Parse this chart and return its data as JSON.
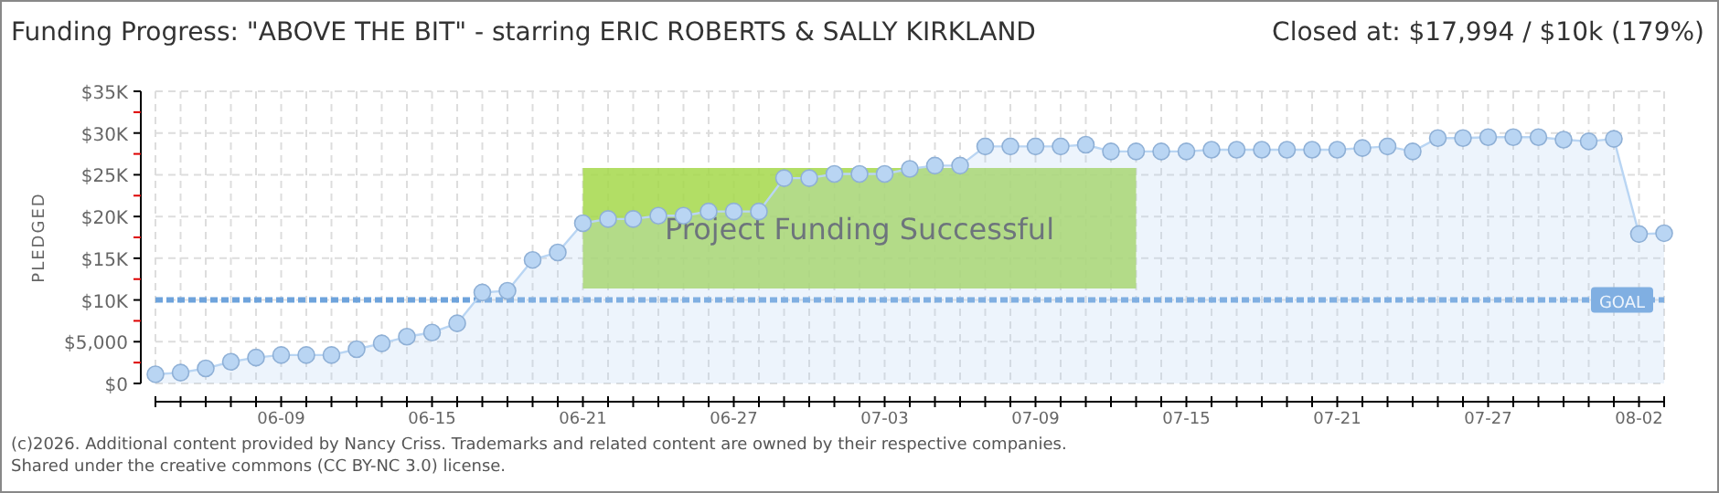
{
  "chart_data": {
    "type": "area",
    "title": "Funding Progress: \"ABOVE THE BIT\" - starring ERIC ROBERTS & SALLY KIRKLAND",
    "subtitle": "Closed at: $17,994 / $10k (179%)",
    "ylabel": "PLEDGED",
    "annotations": [
      "Project Funding Successful",
      "(c)2026. Additional content provided by Nancy Criss. Trademarks and related content are owned by their respective companies.",
      "Shared under the creative commons (CC BY-NC 3.0) license."
    ],
    "x": [
      "--06-04",
      "--06-05",
      "--06-06",
      "--06-07",
      "--06-08",
      "--06-09",
      "--06-10",
      "--06-11",
      "--06-12",
      "--06-13",
      "--06-14",
      "--06-15",
      "--06-16",
      "--06-17",
      "--06-18",
      "--06-19",
      "--06-20",
      "--06-21",
      "--06-22",
      "--06-23",
      "--06-24",
      "--06-25",
      "--06-26",
      "--06-27",
      "--06-28",
      "--06-29",
      "--06-30",
      "--07-01",
      "--07-02",
      "--07-03",
      "--07-04",
      "--07-05",
      "--07-06",
      "--07-07",
      "--07-08",
      "--07-09",
      "--07-10",
      "--07-11",
      "--07-12",
      "--07-13",
      "--07-14",
      "--07-15",
      "--07-16",
      "--07-17",
      "--07-18",
      "--07-19",
      "--07-20",
      "--07-21",
      "--07-22",
      "--07-23",
      "--07-24",
      "--07-25",
      "--07-26",
      "--07-27",
      "--07-28",
      "--07-29",
      "--07-30",
      "--07-31",
      "--08-01",
      "--08-02",
      "--08-03"
    ],
    "series": [
      {
        "color": "#b9d5f3",
        "values": [
          1100,
          1300,
          1800,
          2600,
          3100,
          3400,
          3400,
          3400,
          4100,
          4800,
          5600,
          6100,
          7200,
          10900,
          11100,
          14800,
          15700,
          19200,
          19700,
          19700,
          20100,
          20100,
          20600,
          20600,
          20600,
          24600,
          24600,
          25100,
          25100,
          25100,
          25700,
          26100,
          26100,
          28400,
          28400,
          28400,
          28400,
          28600,
          27800,
          27800,
          27800,
          27800,
          28000,
          28000,
          28000,
          28000,
          28000,
          28000,
          28200,
          28400,
          27800,
          29400,
          29400,
          29500,
          29500,
          29500,
          29200,
          29000,
          29300,
          17900,
          18000
        ]
      }
    ],
    "xlim": [
      "--06-04",
      "--08-03"
    ],
    "xticks": [
      {
        "value": "--06-04",
        "label": null
      },
      {
        "value": "--06-05",
        "label": null
      },
      {
        "value": "--06-06",
        "label": null
      },
      {
        "value": "--06-07",
        "label": null
      },
      {
        "value": "--06-08",
        "label": null
      },
      {
        "value": "--06-09",
        "label": "06-09"
      },
      {
        "value": "--06-10",
        "label": null
      },
      {
        "value": "--06-11",
        "label": null
      },
      {
        "value": "--06-12",
        "label": null
      },
      {
        "value": "--06-13",
        "label": null
      },
      {
        "value": "--06-14",
        "label": null
      },
      {
        "value": "--06-15",
        "label": "06-15"
      },
      {
        "value": "--06-16",
        "label": null
      },
      {
        "value": "--06-17",
        "label": null
      },
      {
        "value": "--06-18",
        "label": null
      },
      {
        "value": "--06-19",
        "label": null
      },
      {
        "value": "--06-20",
        "label": null
      },
      {
        "value": "--06-21",
        "label": "06-21"
      },
      {
        "value": "--06-22",
        "label": null
      },
      {
        "value": "--06-23",
        "label": null
      },
      {
        "value": "--06-24",
        "label": null
      },
      {
        "value": "--06-25",
        "label": null
      },
      {
        "value": "--06-26",
        "label": null
      },
      {
        "value": "--06-27",
        "label": "06-27"
      },
      {
        "value": "--06-28",
        "label": null
      },
      {
        "value": "--06-29",
        "label": null
      },
      {
        "value": "--06-30",
        "label": null
      },
      {
        "value": "--07-01",
        "label": null
      },
      {
        "value": "--07-02",
        "label": null
      },
      {
        "value": "--07-03",
        "label": "07-03"
      },
      {
        "value": "--07-04",
        "label": null
      },
      {
        "value": "--07-05",
        "label": null
      },
      {
        "value": "--07-06",
        "label": null
      },
      {
        "value": "--07-07",
        "label": null
      },
      {
        "value": "--07-08",
        "label": null
      },
      {
        "value": "--07-09",
        "label": "07-09"
      },
      {
        "value": "--07-10",
        "label": null
      },
      {
        "value": "--07-11",
        "label": null
      },
      {
        "value": "--07-12",
        "label": null
      },
      {
        "value": "--07-13",
        "label": null
      },
      {
        "value": "--07-14",
        "label": null
      },
      {
        "value": "--07-15",
        "label": "07-15"
      },
      {
        "value": "--07-16",
        "label": null
      },
      {
        "value": "--07-17",
        "label": null
      },
      {
        "value": "--07-18",
        "label": null
      },
      {
        "value": "--07-19",
        "label": null
      },
      {
        "value": "--07-20",
        "label": null
      },
      {
        "value": "--07-21",
        "label": "07-21"
      },
      {
        "value": "--07-22",
        "label": null
      },
      {
        "value": "--07-23",
        "label": null
      },
      {
        "value": "--07-24",
        "label": null
      },
      {
        "value": "--07-25",
        "label": null
      },
      {
        "value": "--07-26",
        "label": null
      },
      {
        "value": "--07-27",
        "label": "07-27"
      },
      {
        "value": "--07-28",
        "label": null
      },
      {
        "value": "--07-29",
        "label": null
      },
      {
        "value": "--07-30",
        "label": null
      },
      {
        "value": "--07-31",
        "label": null
      },
      {
        "value": "--08-01",
        "label": null
      },
      {
        "value": "--08-02",
        "label": "08-02"
      },
      {
        "value": "--08-03",
        "label": null
      }
    ],
    "ylim": [
      0,
      35000
    ],
    "yticks": [
      {
        "value": 0,
        "label": "$0"
      },
      {
        "value": 2500,
        "label": null
      },
      {
        "value": 5000,
        "label": "$5,000"
      },
      {
        "value": 7500,
        "label": null
      },
      {
        "value": 10000,
        "label": "$10K"
      },
      {
        "value": 12500,
        "label": null
      },
      {
        "value": 15000,
        "label": "$15K"
      },
      {
        "value": 17500,
        "label": null
      },
      {
        "value": 20000,
        "label": "$20K"
      },
      {
        "value": 22500,
        "label": null
      },
      {
        "value": 25000,
        "label": "$25K"
      },
      {
        "value": 27500,
        "label": null
      },
      {
        "value": 30000,
        "label": "$30K"
      },
      {
        "value": 32500,
        "label": null
      },
      {
        "value": 35000,
        "label": "$35K"
      }
    ],
    "ref_lines": [
      {
        "axis": "y",
        "value": 10000,
        "label": "GOAL",
        "color": "#6ea3dc",
        "line_style": "dashed"
      }
    ],
    "grid": true,
    "marker": "circle"
  }
}
